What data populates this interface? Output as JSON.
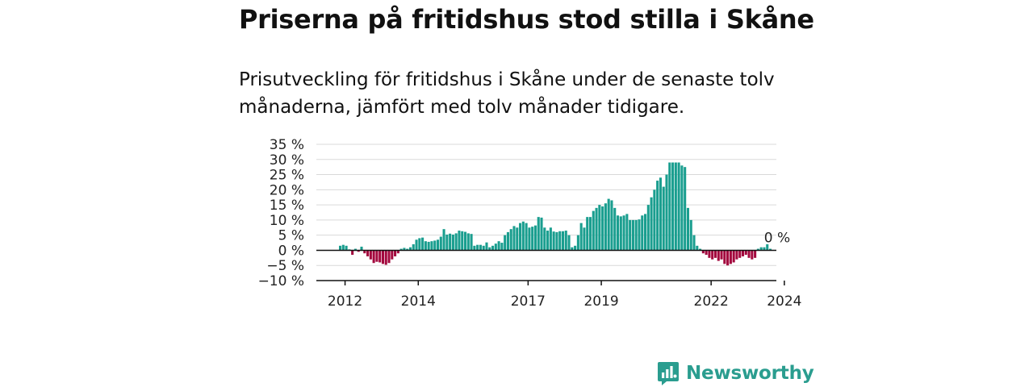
{
  "title": "Priserna på fritidshus stod stilla i Skåne",
  "subtitle": "Prisutveckling för fritidshus i Skåne under de senaste tolv månaderna, jämfört med tolv månader tidigare.",
  "brand": {
    "name": "Newsworthy",
    "icon": "newsworthy-logo-icon",
    "color": "#2a9d8f"
  },
  "chart_data": {
    "type": "bar",
    "ylim": [
      -10,
      35
    ],
    "yticks": [
      35,
      30,
      25,
      20,
      15,
      10,
      5,
      0,
      -5,
      -10
    ],
    "ytick_labels": [
      "35 %",
      "30 %",
      "25 %",
      "20 %",
      "15 %",
      "10 %",
      "5 %",
      "0 %",
      "−5 %",
      "−10 %"
    ],
    "xticks": [
      {
        "label": "2012",
        "year": 2012
      },
      {
        "label": "2014",
        "year": 2014
      },
      {
        "label": "2017",
        "year": 2017
      },
      {
        "label": "2019",
        "year": 2019
      },
      {
        "label": "2022",
        "year": 2022
      },
      {
        "label": "2024",
        "year": 2024
      }
    ],
    "start": {
      "year": 2011,
      "month": 11
    },
    "positive_color": "#1a9e8f",
    "negative_color": "#a3093e",
    "grid": true,
    "annotation": {
      "text": "0 %",
      "value": 0
    },
    "values": [
      1.5,
      1.8,
      1.5,
      0.3,
      -1.5,
      0.5,
      -0.5,
      1.2,
      -1,
      -2,
      -3,
      -4.2,
      -3.8,
      -4,
      -4.5,
      -4.8,
      -4.2,
      -3,
      -2,
      -1,
      0.5,
      0.8,
      0.5,
      1,
      2,
      3.5,
      4,
      4.2,
      3,
      2.8,
      3,
      3.2,
      3.5,
      4.5,
      7,
      5.2,
      5.5,
      5.2,
      5.6,
      6.5,
      6.3,
      6.1,
      5.6,
      5.4,
      1.5,
      1.8,
      1.8,
      1.5,
      2.6,
      1,
      1.5,
      2.2,
      3,
      2.5,
      5,
      6,
      7,
      8,
      7.5,
      9,
      9.5,
      9,
      7.5,
      7.8,
      8.2,
      11,
      10.8,
      7.5,
      6.5,
      7.5,
      6.2,
      6,
      6.3,
      6.3,
      6.5,
      5,
      1,
      1.5,
      5,
      9,
      7.5,
      11,
      11,
      13,
      14,
      15,
      14.5,
      15.5,
      17,
      16.5,
      14,
      11.5,
      11.2,
      11.5,
      12,
      10,
      10,
      10,
      10.2,
      11.5,
      12,
      15,
      17.5,
      20,
      23,
      24,
      21,
      25,
      29,
      29,
      29,
      29,
      28,
      27.5,
      14,
      10,
      5,
      1.5,
      0.5,
      -1,
      -1.5,
      -2.5,
      -3,
      -2.5,
      -3.5,
      -3,
      -4.5,
      -5,
      -4.5,
      -4,
      -3,
      -2.5,
      -2,
      -1.5,
      -2.5,
      -3,
      -2.5,
      0.5,
      1,
      1,
      2,
      0.5
    ]
  }
}
